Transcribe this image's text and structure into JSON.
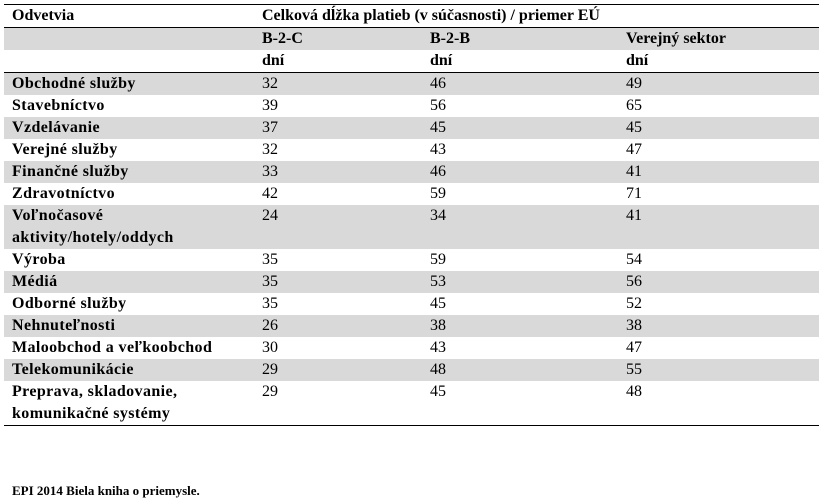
{
  "table": {
    "header_sector": "Odvetvia",
    "header_title": "Celková dĺžka platieb (v súčasnosti) / priemer EÚ",
    "columns": [
      "B-2-C",
      "B-2-B",
      "Verejný sektor"
    ],
    "units": [
      "dní",
      "dní",
      "dní"
    ],
    "rows": [
      {
        "sector": "Obchodné služby",
        "values": [
          "32",
          "46",
          "49"
        ]
      },
      {
        "sector": "Stavebníctvo",
        "values": [
          "39",
          "56",
          "65"
        ]
      },
      {
        "sector": "Vzdelávanie",
        "values": [
          "37",
          "45",
          "45"
        ]
      },
      {
        "sector": "Verejné služby",
        "values": [
          "32",
          "43",
          "47"
        ]
      },
      {
        "sector": "Finančné služby",
        "values": [
          "33",
          "46",
          "41"
        ]
      },
      {
        "sector": "Zdravotníctvo",
        "values": [
          "42",
          "59",
          "71"
        ]
      },
      {
        "sector": "Voľnočasové aktivity/hotely/oddych",
        "values": [
          "24",
          "34",
          "41"
        ]
      },
      {
        "sector": "Výroba",
        "values": [
          "35",
          "59",
          "54"
        ]
      },
      {
        "sector": "Médiá",
        "values": [
          "35",
          "53",
          "56"
        ]
      },
      {
        "sector": "Odborné služby",
        "values": [
          "35",
          "45",
          "52"
        ]
      },
      {
        "sector": "Nehnuteľnosti",
        "values": [
          "26",
          "38",
          "38"
        ]
      },
      {
        "sector": "Maloobchod a veľkoobchod",
        "values": [
          "30",
          "43",
          "47"
        ]
      },
      {
        "sector": "Telekomunikácie",
        "values": [
          "29",
          "48",
          "55"
        ]
      },
      {
        "sector": "Preprava, skladovanie, komunikačné systémy",
        "values": [
          "29",
          "45",
          "48"
        ]
      }
    ]
  },
  "source": "EPI 2014 Biela kniha o priemysle."
}
